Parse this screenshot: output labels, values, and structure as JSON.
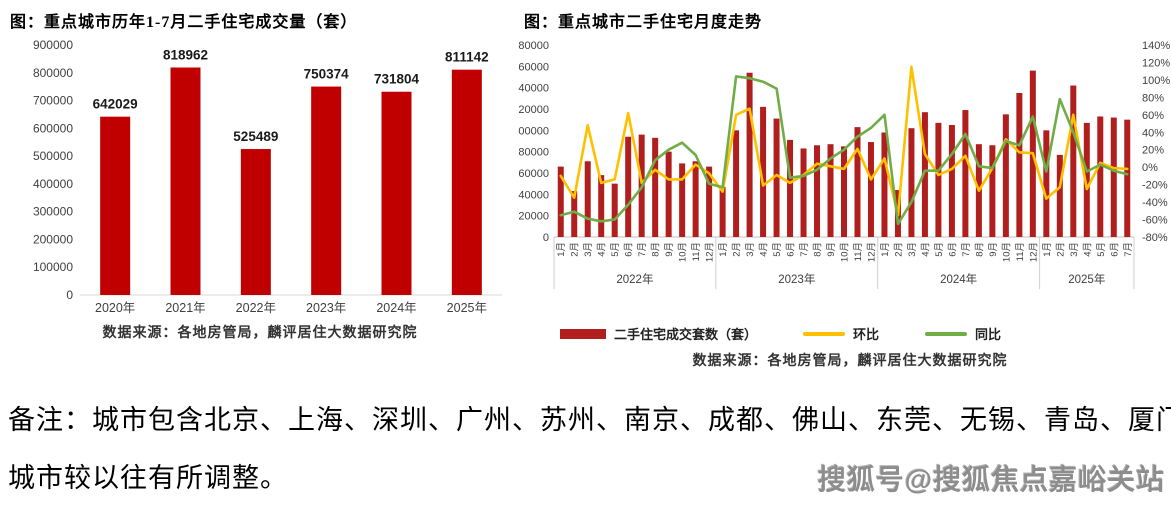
{
  "page": {
    "note_line1": "备注：城市包含北京、上海、深圳、广州、苏州、南京、成都、佛山、东莞、无锡、青岛、厦门、郑州，",
    "note_line2": "城市较以往有所调整。",
    "watermark": "搜狐号@搜狐焦点嘉峪关站"
  },
  "chart_data": [
    {
      "type": "bar",
      "title": "图：重点城市历年1-7月二手住宅成交量（套）",
      "source": "数据来源：各地房管局，麟评居住大数据研究院",
      "categories": [
        "2020年",
        "2021年",
        "2022年",
        "2023年",
        "2024年",
        "2025年"
      ],
      "values": [
        642029,
        818962,
        525489,
        750374,
        731804,
        811142
      ],
      "value_labels": [
        "642029",
        "818962",
        "525489",
        "750374",
        "731804",
        "811142"
      ],
      "bar_color": "#c00000",
      "ylim": [
        0,
        900000
      ],
      "ytick_step": 100000,
      "yticks": [
        0,
        100000,
        200000,
        300000,
        400000,
        500000,
        600000,
        700000,
        800000,
        900000
      ],
      "grid": "off",
      "legend": "none"
    },
    {
      "type": "combo-bar-line",
      "title": "图：重点城市二手住宅月度走势",
      "source": "数据来源：各地房管局，麟评居住大数据研究院",
      "month_labels": [
        "1月",
        "2月",
        "3月",
        "4月",
        "5月",
        "6月",
        "7月",
        "8月",
        "9月",
        "10月",
        "11月",
        "12月",
        "1月",
        "2月",
        "3月",
        "4月",
        "5月",
        "6月",
        "7月",
        "8月",
        "9月",
        "10月",
        "11月",
        "12月",
        "1月",
        "2月",
        "3月",
        "4月",
        "5月",
        "6月",
        "7月",
        "8月",
        "9月",
        "10月",
        "11月",
        "12月",
        "1月",
        "2月",
        "3月",
        "4月",
        "5月",
        "6月",
        "7月"
      ],
      "year_groups": [
        {
          "label": "2022年",
          "count": 12
        },
        {
          "label": "2023年",
          "count": 12
        },
        {
          "label": "2024年",
          "count": 12
        },
        {
          "label": "2025年",
          "count": 7
        }
      ],
      "series": [
        {
          "name": "二手住宅成交套数（套）",
          "type": "bar",
          "axis": "left",
          "color": "#b01e1e",
          "values": [
            66000,
            43000,
            71000,
            58000,
            50000,
            94000,
            96000,
            93000,
            80000,
            69000,
            71000,
            66000,
            47000,
            100000,
            154000,
            122000,
            111000,
            91000,
            83000,
            86000,
            87000,
            85000,
            103000,
            89000,
            98000,
            44000,
            102000,
            117000,
            107000,
            105000,
            119000,
            87000,
            86000,
            115000,
            135000,
            156000,
            100000,
            77000,
            142000,
            107000,
            113000,
            112000,
            110000
          ]
        },
        {
          "name": "环比",
          "type": "line",
          "axis": "right",
          "color": "#ffc000",
          "values_pct": [
            -10,
            -35,
            48,
            -18,
            -14,
            62,
            -18,
            -3,
            -14,
            -14,
            3,
            -7,
            -28,
            60,
            67,
            -21,
            -9,
            -18,
            -9,
            4,
            1,
            -2,
            21,
            -14,
            10,
            -55,
            115,
            15,
            -9,
            -2,
            13,
            -27,
            -1,
            32,
            17,
            16,
            -36,
            -23,
            60,
            -25,
            5,
            -1,
            -2
          ]
        },
        {
          "name": "同比",
          "type": "line",
          "axis": "right",
          "color": "#70ad47",
          "values_pct": [
            -55,
            -51,
            -59,
            -62,
            -60,
            -43,
            -23,
            8,
            20,
            28,
            14,
            -19,
            -23,
            104,
            102,
            98,
            90,
            -12,
            -10,
            -3,
            10,
            20,
            35,
            45,
            60,
            -65,
            -40,
            -4,
            -4,
            15,
            38,
            1,
            -1,
            30,
            25,
            58,
            -5,
            78,
            40,
            -5,
            3,
            -4,
            -8
          ]
        }
      ],
      "left_axis": {
        "min": 0,
        "max": 180000,
        "step": 20000,
        "ticks": [
          0,
          20000,
          40000,
          60000,
          80000,
          100000,
          120000,
          140000,
          160000,
          180000
        ]
      },
      "right_axis": {
        "min": -80,
        "max": 140,
        "step": 20,
        "ticks": [
          "140%",
          "120%",
          "100%",
          "80%",
          "60%",
          "40%",
          "20%",
          "0%",
          "-20%",
          "-40%",
          "-60%",
          "-80%"
        ]
      },
      "grid": "off",
      "legend_position": "bottom"
    }
  ]
}
